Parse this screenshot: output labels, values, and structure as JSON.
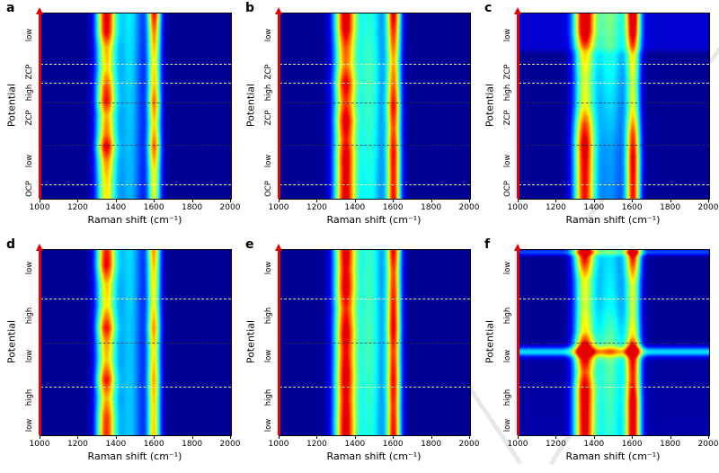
{
  "figure": {
    "colormap": {
      "name": "jet",
      "low": "#00008f",
      "mid": "#00ffff",
      "high": "#ff2000"
    },
    "y_axis_arrow_color": "#e40000"
  },
  "chart_data": [
    {
      "type": "heatmap",
      "label": "a",
      "xlabel": "Raman shift (cm⁻¹)",
      "ylabel": "Potential",
      "x_range": [
        1000,
        2000
      ],
      "x_ticks": [
        1000,
        1200,
        1400,
        1600,
        1800,
        2000
      ],
      "y_region_labels": [
        {
          "text": "low",
          "y": 0.12
        },
        {
          "text": "ZCP",
          "y": 0.32
        },
        {
          "text": "high",
          "y": 0.43
        },
        {
          "text": "ZCP",
          "y": 0.57
        },
        {
          "text": "low",
          "y": 0.8
        },
        {
          "text": "OCP",
          "y": 0.95
        }
      ],
      "boundary_lines": [
        {
          "y": 0.27,
          "style": "light"
        },
        {
          "y": 0.375,
          "style": "light"
        },
        {
          "y": 0.48,
          "style": "dark"
        },
        {
          "y": 0.71,
          "style": "dark"
        },
        {
          "y": 0.92,
          "style": "light"
        }
      ],
      "base": [
        [
          0,
          0.02
        ],
        [
          1,
          0.02
        ]
      ],
      "bands": [
        {
          "name": "D-band",
          "center": 1345,
          "sigma": 36,
          "profile": [
            [
              0,
              0.88
            ],
            [
              0.1,
              0.86
            ],
            [
              0.18,
              0.66
            ],
            [
              0.3,
              0.62
            ],
            [
              0.4,
              0.78
            ],
            [
              0.47,
              0.84
            ],
            [
              0.55,
              0.66
            ],
            [
              0.65,
              0.72
            ],
            [
              0.72,
              0.88
            ],
            [
              0.8,
              0.7
            ],
            [
              0.9,
              0.62
            ],
            [
              1,
              0.6
            ]
          ]
        },
        {
          "name": "G-band",
          "center": 1598,
          "sigma": 24,
          "profile": [
            [
              0,
              0.84
            ],
            [
              0.1,
              0.72
            ],
            [
              0.25,
              0.6
            ],
            [
              0.4,
              0.66
            ],
            [
              0.47,
              0.74
            ],
            [
              0.6,
              0.62
            ],
            [
              0.72,
              0.76
            ],
            [
              0.85,
              0.6
            ],
            [
              1,
              0.56
            ]
          ]
        },
        {
          "name": "valley",
          "center": 1468,
          "sigma": 52,
          "profile": [
            [
              0,
              0.34
            ],
            [
              0.5,
              0.3
            ],
            [
              1,
              0.28
            ]
          ]
        }
      ],
      "row_stripes": []
    },
    {
      "type": "heatmap",
      "label": "b",
      "xlabel": "Raman shift (cm⁻¹)",
      "ylabel": "Potential",
      "x_range": [
        1000,
        2000
      ],
      "x_ticks": [
        1000,
        1200,
        1400,
        1600,
        1800,
        2000
      ],
      "y_region_labels": [
        {
          "text": "low",
          "y": 0.12
        },
        {
          "text": "ZCP",
          "y": 0.32
        },
        {
          "text": "high",
          "y": 0.43
        },
        {
          "text": "ZCP",
          "y": 0.57
        },
        {
          "text": "low",
          "y": 0.8
        },
        {
          "text": "OCP",
          "y": 0.95
        }
      ],
      "boundary_lines": [
        {
          "y": 0.27,
          "style": "light"
        },
        {
          "y": 0.375,
          "style": "light"
        },
        {
          "y": 0.48,
          "style": "dark"
        },
        {
          "y": 0.71,
          "style": "dark"
        },
        {
          "y": 0.92,
          "style": "light"
        }
      ],
      "base": [
        [
          0,
          0.02
        ],
        [
          1,
          0.02
        ]
      ],
      "bands": [
        {
          "name": "D-band",
          "center": 1345,
          "sigma": 40,
          "profile": [
            [
              0,
              0.9
            ],
            [
              0.08,
              0.88
            ],
            [
              0.18,
              0.74
            ],
            [
              0.28,
              0.7
            ],
            [
              0.38,
              0.86
            ],
            [
              0.48,
              0.76
            ],
            [
              0.58,
              0.88
            ],
            [
              0.68,
              0.8
            ],
            [
              0.78,
              0.88
            ],
            [
              0.88,
              0.86
            ],
            [
              1,
              0.88
            ]
          ]
        },
        {
          "name": "G-band",
          "center": 1600,
          "sigma": 26,
          "profile": [
            [
              0,
              0.86
            ],
            [
              0.12,
              0.76
            ],
            [
              0.25,
              0.64
            ],
            [
              0.38,
              0.72
            ],
            [
              0.5,
              0.82
            ],
            [
              0.62,
              0.74
            ],
            [
              0.75,
              0.82
            ],
            [
              0.88,
              0.8
            ],
            [
              1,
              0.82
            ]
          ]
        },
        {
          "name": "valley",
          "center": 1475,
          "sigma": 58,
          "profile": [
            [
              0,
              0.38
            ],
            [
              0.3,
              0.42
            ],
            [
              0.6,
              0.4
            ],
            [
              1,
              0.36
            ]
          ]
        }
      ],
      "row_stripes": []
    },
    {
      "type": "heatmap",
      "label": "c",
      "xlabel": "Raman shift (cm⁻¹)",
      "ylabel": "Potential",
      "x_range": [
        1000,
        2000
      ],
      "x_ticks": [
        1000,
        1200,
        1400,
        1600,
        1800,
        2000
      ],
      "y_region_labels": [
        {
          "text": "low",
          "y": 0.12
        },
        {
          "text": "ZCP",
          "y": 0.32
        },
        {
          "text": "high",
          "y": 0.43
        },
        {
          "text": "ZCP",
          "y": 0.57
        },
        {
          "text": "low",
          "y": 0.8
        },
        {
          "text": "OCP",
          "y": 0.95
        }
      ],
      "boundary_lines": [
        {
          "y": 0.27,
          "style": "light"
        },
        {
          "y": 0.375,
          "style": "light"
        },
        {
          "y": 0.48,
          "style": "dark"
        },
        {
          "y": 0.71,
          "style": "dark"
        },
        {
          "y": 0.92,
          "style": "light"
        }
      ],
      "base": [
        [
          0,
          0.08
        ],
        [
          0.18,
          0.08
        ],
        [
          0.22,
          0.02
        ],
        [
          1,
          0.02
        ]
      ],
      "bands": [
        {
          "name": "D-band",
          "center": 1345,
          "sigma": 38,
          "profile": [
            [
              0,
              0.9
            ],
            [
              0.1,
              0.88
            ],
            [
              0.2,
              0.6
            ],
            [
              0.35,
              0.52
            ],
            [
              0.5,
              0.56
            ],
            [
              0.6,
              0.76
            ],
            [
              0.7,
              0.88
            ],
            [
              0.85,
              0.84
            ],
            [
              1,
              0.82
            ]
          ]
        },
        {
          "name": "G-band",
          "center": 1602,
          "sigma": 26,
          "profile": [
            [
              0,
              0.88
            ],
            [
              0.1,
              0.82
            ],
            [
              0.22,
              0.56
            ],
            [
              0.38,
              0.48
            ],
            [
              0.52,
              0.54
            ],
            [
              0.65,
              0.74
            ],
            [
              0.78,
              0.84
            ],
            [
              1,
              0.8
            ]
          ]
        },
        {
          "name": "valley",
          "center": 1480,
          "sigma": 66,
          "profile": [
            [
              0,
              0.42
            ],
            [
              0.25,
              0.38
            ],
            [
              0.5,
              0.32
            ],
            [
              0.75,
              0.26
            ],
            [
              1,
              0.24
            ]
          ]
        }
      ],
      "row_stripes": []
    },
    {
      "type": "heatmap",
      "label": "d",
      "xlabel": "Raman shift (cm⁻¹)",
      "ylabel": "Potential",
      "x_range": [
        1000,
        2000
      ],
      "x_ticks": [
        1000,
        1200,
        1400,
        1600,
        1800,
        2000
      ],
      "y_region_labels": [
        {
          "text": "low",
          "y": 0.1
        },
        {
          "text": "high",
          "y": 0.36
        },
        {
          "text": "low",
          "y": 0.58
        },
        {
          "text": "high",
          "y": 0.8
        },
        {
          "text": "low",
          "y": 0.95
        }
      ],
      "boundary_lines": [
        {
          "y": 0.26,
          "style": "light"
        },
        {
          "y": 0.5,
          "style": "dark"
        },
        {
          "y": 0.74,
          "style": "light"
        }
      ],
      "base": [
        [
          0,
          0.02
        ],
        [
          1,
          0.02
        ]
      ],
      "bands": [
        {
          "name": "D-band",
          "center": 1345,
          "sigma": 36,
          "profile": [
            [
              0,
              0.82
            ],
            [
              0.08,
              0.86
            ],
            [
              0.18,
              0.64
            ],
            [
              0.3,
              0.6
            ],
            [
              0.42,
              0.84
            ],
            [
              0.5,
              0.68
            ],
            [
              0.6,
              0.64
            ],
            [
              0.7,
              0.84
            ],
            [
              0.8,
              0.66
            ],
            [
              0.9,
              0.78
            ],
            [
              1,
              0.8
            ]
          ]
        },
        {
          "name": "G-band",
          "center": 1596,
          "sigma": 24,
          "profile": [
            [
              0,
              0.7
            ],
            [
              0.12,
              0.62
            ],
            [
              0.28,
              0.58
            ],
            [
              0.42,
              0.7
            ],
            [
              0.55,
              0.6
            ],
            [
              0.7,
              0.68
            ],
            [
              0.85,
              0.62
            ],
            [
              1,
              0.64
            ]
          ]
        },
        {
          "name": "valley",
          "center": 1468,
          "sigma": 52,
          "profile": [
            [
              0,
              0.32
            ],
            [
              0.5,
              0.3
            ],
            [
              1,
              0.3
            ]
          ]
        }
      ],
      "row_stripes": []
    },
    {
      "type": "heatmap",
      "label": "e",
      "xlabel": "Raman shift (cm⁻¹)",
      "ylabel": "Potential",
      "x_range": [
        1000,
        2000
      ],
      "x_ticks": [
        1000,
        1200,
        1400,
        1600,
        1800,
        2000
      ],
      "y_region_labels": [
        {
          "text": "low",
          "y": 0.1
        },
        {
          "text": "high",
          "y": 0.36
        },
        {
          "text": "low",
          "y": 0.58
        },
        {
          "text": "high",
          "y": 0.8
        },
        {
          "text": "low",
          "y": 0.95
        }
      ],
      "boundary_lines": [
        {
          "y": 0.26,
          "style": "light"
        },
        {
          "y": 0.5,
          "style": "dark"
        },
        {
          "y": 0.74,
          "style": "light"
        }
      ],
      "base": [
        [
          0,
          0.02
        ],
        [
          1,
          0.02
        ]
      ],
      "bands": [
        {
          "name": "D-band",
          "center": 1345,
          "sigma": 40,
          "profile": [
            [
              0,
              0.88
            ],
            [
              0.1,
              0.84
            ],
            [
              0.2,
              0.88
            ],
            [
              0.32,
              0.78
            ],
            [
              0.45,
              0.88
            ],
            [
              0.55,
              0.82
            ],
            [
              0.68,
              0.88
            ],
            [
              0.8,
              0.84
            ],
            [
              0.92,
              0.88
            ],
            [
              1,
              0.88
            ]
          ]
        },
        {
          "name": "G-band",
          "center": 1600,
          "sigma": 26,
          "profile": [
            [
              0,
              0.84
            ],
            [
              0.12,
              0.74
            ],
            [
              0.28,
              0.8
            ],
            [
              0.42,
              0.84
            ],
            [
              0.55,
              0.76
            ],
            [
              0.7,
              0.82
            ],
            [
              0.85,
              0.78
            ],
            [
              1,
              0.82
            ]
          ]
        },
        {
          "name": "valley",
          "center": 1475,
          "sigma": 58,
          "profile": [
            [
              0,
              0.4
            ],
            [
              0.5,
              0.42
            ],
            [
              1,
              0.38
            ]
          ]
        }
      ],
      "row_stripes": []
    },
    {
      "type": "heatmap",
      "label": "f",
      "xlabel": "Raman shift (cm⁻¹)",
      "ylabel": "Potential",
      "x_range": [
        1000,
        2000
      ],
      "x_ticks": [
        1000,
        1200,
        1400,
        1600,
        1800,
        2000
      ],
      "y_region_labels": [
        {
          "text": "low",
          "y": 0.1
        },
        {
          "text": "high",
          "y": 0.36
        },
        {
          "text": "low",
          "y": 0.58
        },
        {
          "text": "high",
          "y": 0.8
        },
        {
          "text": "low",
          "y": 0.95
        }
      ],
      "boundary_lines": [
        {
          "y": 0.26,
          "style": "light"
        },
        {
          "y": 0.5,
          "style": "dark"
        },
        {
          "y": 0.74,
          "style": "light"
        }
      ],
      "base": [
        [
          0,
          0.02
        ],
        [
          0.48,
          0.02
        ],
        [
          0.55,
          0.05
        ],
        [
          0.62,
          0.03
        ],
        [
          1,
          0.04
        ]
      ],
      "bands": [
        {
          "name": "D-band",
          "center": 1345,
          "sigma": 38,
          "profile": [
            [
              0,
              0.88
            ],
            [
              0.06,
              0.8
            ],
            [
              0.16,
              0.56
            ],
            [
              0.3,
              0.52
            ],
            [
              0.44,
              0.58
            ],
            [
              0.52,
              0.88
            ],
            [
              0.58,
              0.86
            ],
            [
              0.66,
              0.72
            ],
            [
              0.76,
              0.88
            ],
            [
              0.88,
              0.86
            ],
            [
              1,
              0.84
            ]
          ]
        },
        {
          "name": "G-band",
          "center": 1602,
          "sigma": 28,
          "profile": [
            [
              0,
              0.88
            ],
            [
              0.06,
              0.76
            ],
            [
              0.18,
              0.52
            ],
            [
              0.34,
              0.48
            ],
            [
              0.46,
              0.56
            ],
            [
              0.53,
              0.84
            ],
            [
              0.6,
              0.78
            ],
            [
              0.7,
              0.74
            ],
            [
              0.82,
              0.86
            ],
            [
              1,
              0.84
            ]
          ]
        },
        {
          "name": "valley",
          "center": 1480,
          "sigma": 64,
          "profile": [
            [
              0,
              0.32
            ],
            [
              0.3,
              0.36
            ],
            [
              0.5,
              0.46
            ],
            [
              0.7,
              0.42
            ],
            [
              1,
              0.38
            ]
          ]
        }
      ],
      "row_stripes": [
        {
          "y": 0.55,
          "sigma": 0.018,
          "amp": 0.3
        },
        {
          "y": 0.01,
          "sigma": 0.012,
          "amp": 0.18
        }
      ]
    }
  ]
}
